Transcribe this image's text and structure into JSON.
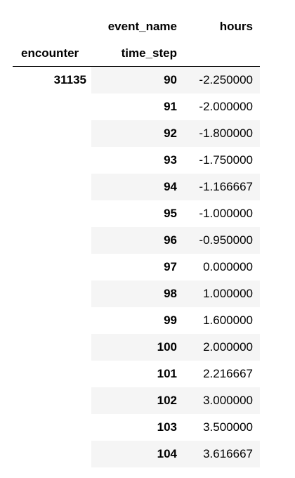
{
  "table": {
    "columns": {
      "event_name_label": "event_name",
      "hours_label": "hours"
    },
    "index": {
      "encounter_label": "encounter",
      "time_step_label": "time_step"
    },
    "encounter_value": "31135",
    "rows": [
      {
        "time_step": "90",
        "hours": "-2.250000"
      },
      {
        "time_step": "91",
        "hours": "-2.000000"
      },
      {
        "time_step": "92",
        "hours": "-1.800000"
      },
      {
        "time_step": "93",
        "hours": "-1.750000"
      },
      {
        "time_step": "94",
        "hours": "-1.166667"
      },
      {
        "time_step": "95",
        "hours": "-1.000000"
      },
      {
        "time_step": "96",
        "hours": "-0.950000"
      },
      {
        "time_step": "97",
        "hours": "0.000000"
      },
      {
        "time_step": "98",
        "hours": "1.000000"
      },
      {
        "time_step": "99",
        "hours": "1.600000"
      },
      {
        "time_step": "100",
        "hours": "2.000000"
      },
      {
        "time_step": "101",
        "hours": "2.216667"
      },
      {
        "time_step": "102",
        "hours": "3.000000"
      },
      {
        "time_step": "103",
        "hours": "3.500000"
      },
      {
        "time_step": "104",
        "hours": "3.616667"
      }
    ]
  }
}
